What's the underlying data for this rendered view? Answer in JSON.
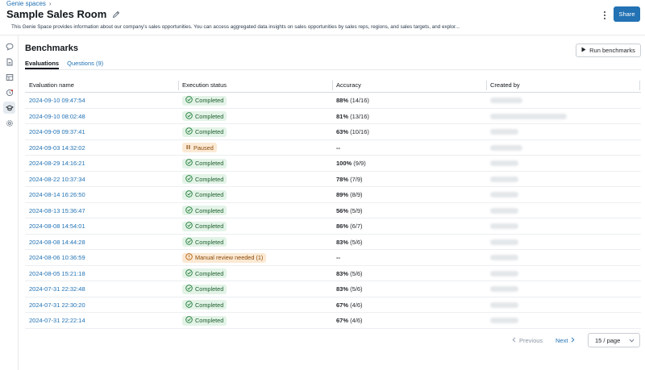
{
  "breadcrumb": {
    "root": "Genie spaces",
    "separator": "›"
  },
  "header": {
    "title": "Sample Sales Room",
    "description": "This Genie Space provides information about our company's sales opportunities. You can access aggregated data insights on sales opportunities by sales reps, regions, and sales targets, and explor...",
    "share_label": "Share"
  },
  "sidebar": {
    "items": [
      {
        "icon": "chat-icon"
      },
      {
        "icon": "document-icon"
      },
      {
        "icon": "table-icon"
      },
      {
        "icon": "history-icon"
      },
      {
        "icon": "benchmark-icon",
        "active": true
      },
      {
        "icon": "gear-icon"
      }
    ]
  },
  "section": {
    "title": "Benchmarks",
    "run_label": "Run benchmarks",
    "tabs": [
      {
        "label": "Evaluations",
        "active": true
      },
      {
        "label": "Questions (9)",
        "active": false
      }
    ]
  },
  "table": {
    "columns": [
      "Evaluation name",
      "Execution status",
      "Accuracy",
      "Created by"
    ],
    "rows": [
      {
        "name": "2024-09-10 09:47:54",
        "status": "Completed",
        "status_type": "completed",
        "acc_pct": "88%",
        "acc_frac": "(14/16)"
      },
      {
        "name": "2024-09-10 08:02:48",
        "status": "Completed",
        "status_type": "completed",
        "acc_pct": "81%",
        "acc_frac": "(13/16)"
      },
      {
        "name": "2024-09-09 09:37:41",
        "status": "Completed",
        "status_type": "completed",
        "acc_pct": "63%",
        "acc_frac": "(10/16)"
      },
      {
        "name": "2024-09-03 14:32:02",
        "status": "Paused",
        "status_type": "paused",
        "acc_pct": "--",
        "acc_frac": ""
      },
      {
        "name": "2024-08-29 14:16:21",
        "status": "Completed",
        "status_type": "completed",
        "acc_pct": "100%",
        "acc_frac": "(9/9)"
      },
      {
        "name": "2024-08-22 10:37:34",
        "status": "Completed",
        "status_type": "completed",
        "acc_pct": "78%",
        "acc_frac": "(7/9)"
      },
      {
        "name": "2024-08-14 16:26:50",
        "status": "Completed",
        "status_type": "completed",
        "acc_pct": "89%",
        "acc_frac": "(8/9)"
      },
      {
        "name": "2024-08-13 15:36:47",
        "status": "Completed",
        "status_type": "completed",
        "acc_pct": "56%",
        "acc_frac": "(5/9)"
      },
      {
        "name": "2024-08-08 14:54:01",
        "status": "Completed",
        "status_type": "completed",
        "acc_pct": "86%",
        "acc_frac": "(6/7)"
      },
      {
        "name": "2024-08-08 14:44:28",
        "status": "Completed",
        "status_type": "completed",
        "acc_pct": "83%",
        "acc_frac": "(5/6)"
      },
      {
        "name": "2024-08-06 10:36:59",
        "status": "Manual review needed (1)",
        "status_type": "review",
        "acc_pct": "--",
        "acc_frac": ""
      },
      {
        "name": "2024-08-05 15:21:18",
        "status": "Completed",
        "status_type": "completed",
        "acc_pct": "83%",
        "acc_frac": "(5/6)"
      },
      {
        "name": "2024-07-31 22:32:48",
        "status": "Completed",
        "status_type": "completed",
        "acc_pct": "83%",
        "acc_frac": "(5/6)"
      },
      {
        "name": "2024-07-31 22:30:20",
        "status": "Completed",
        "status_type": "completed",
        "acc_pct": "67%",
        "acc_frac": "(4/6)"
      },
      {
        "name": "2024-07-31 22:22:14",
        "status": "Completed",
        "status_type": "completed",
        "acc_pct": "67%",
        "acc_frac": "(4/6)"
      }
    ]
  },
  "pagination": {
    "prev_label": "Previous",
    "next_label": "Next",
    "page_size": "15 / page"
  },
  "colors": {
    "accent": "#2272b4",
    "completed_bg": "#e3f3e7",
    "completed_fg": "#1b5e2b",
    "paused_bg": "#fbe9d4",
    "paused_fg": "#8a4b0a"
  }
}
